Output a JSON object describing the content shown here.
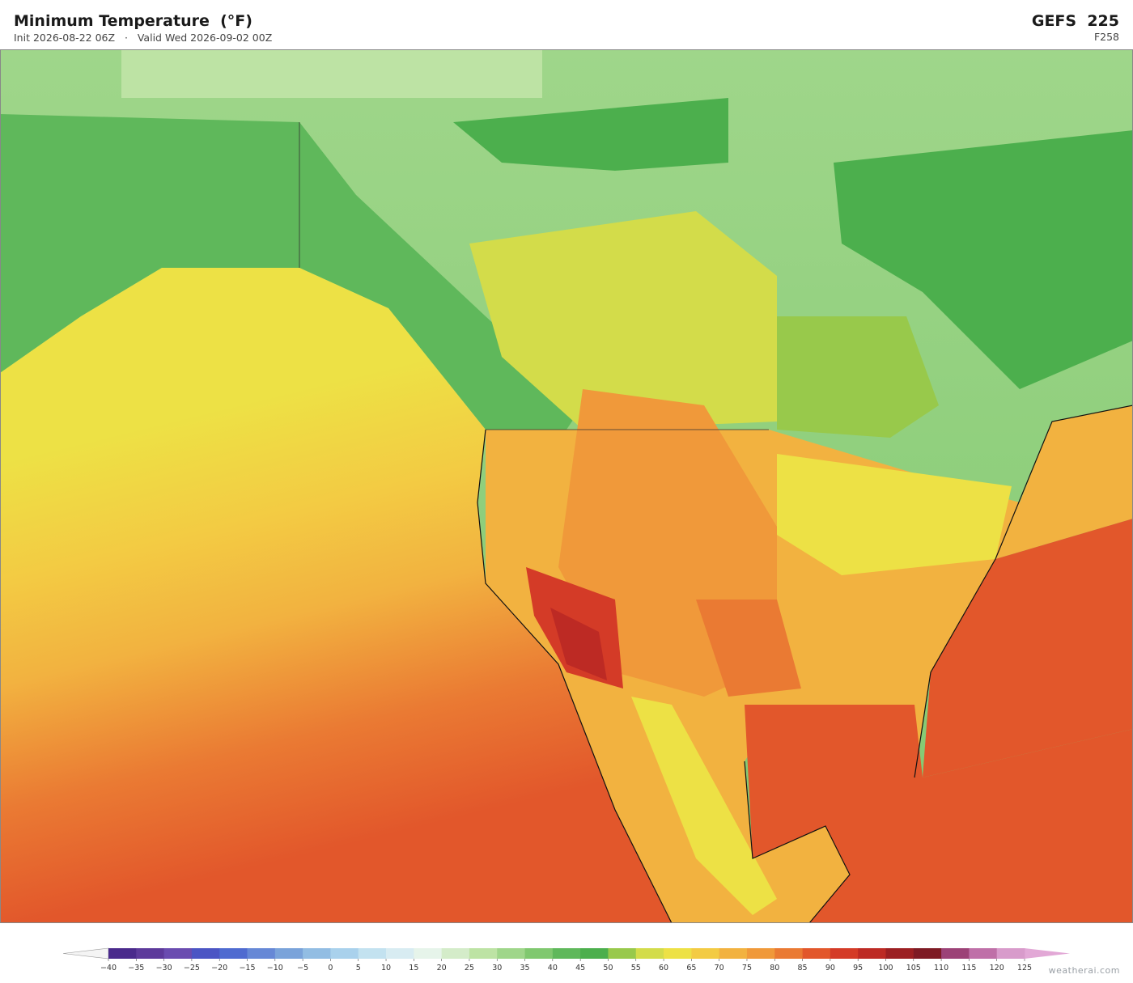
{
  "header": {
    "title": "Minimum Temperature  (°F)",
    "subtitle": "Init 2026-08-22 06Z   ·   Valid Wed 2026-09-02 00Z",
    "model": "GEFS  225",
    "forecast_hour": "F258"
  },
  "colorbar": {
    "ticks": [
      {
        "value": -40,
        "label": "−40"
      },
      {
        "value": -35,
        "label": "−35"
      },
      {
        "value": -30,
        "label": "−30"
      },
      {
        "value": -25,
        "label": "−25"
      },
      {
        "value": -20,
        "label": "−20"
      },
      {
        "value": -15,
        "label": "−15"
      },
      {
        "value": -10,
        "label": "−10"
      },
      {
        "value": -5,
        "label": "−5"
      },
      0,
      5,
      10,
      15,
      20,
      25,
      30,
      35,
      40,
      45,
      50,
      55,
      60,
      65,
      70,
      75,
      80,
      85,
      90,
      95,
      100,
      105,
      110,
      115,
      120,
      125
    ],
    "colors": [
      "#4a2a8c",
      "#5d3a9b",
      "#6a4cb0",
      "#4b55c4",
      "#4f6bd0",
      "#6688d6",
      "#7aa3da",
      "#92bde3",
      "#a9d1ec",
      "#c3e2f0",
      "#d8ecf2",
      "#e6f4ea",
      "#d4ecc9",
      "#bde3a4",
      "#9fd68a",
      "#80c86f",
      "#5fb85b",
      "#4caf4d",
      "#98c94b",
      "#d3dc4a",
      "#ede145",
      "#f3cb43",
      "#f2b240",
      "#f0993a",
      "#ea7a33",
      "#e2572b",
      "#d43b27",
      "#bd2a24",
      "#9c1f22",
      "#7e1a24",
      "#9c4277",
      "#bf70a8",
      "#d89bcb"
    ],
    "under_color": "#f4f4f4",
    "over_color": "#e2a8d6"
  },
  "watermark": "weatherai.com"
}
